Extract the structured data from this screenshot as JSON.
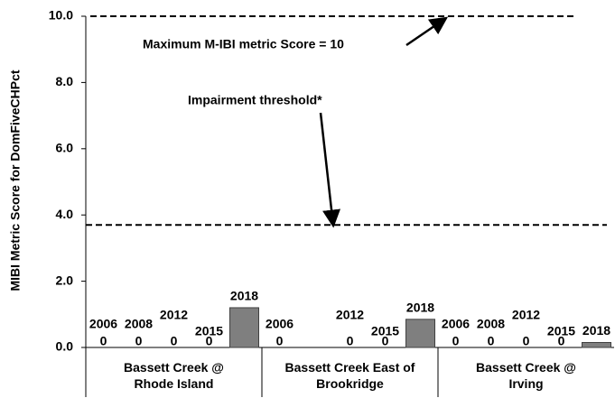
{
  "chart_data": {
    "type": "bar",
    "y_label": "MIBI Metric Score for DomFiveCHPct",
    "categories": [
      "Bassett Creek @\nRhode Island",
      "Bassett Creek East of\nBrookridge",
      "Bassett Creek @\nIrving"
    ],
    "series": [
      {
        "name": "2006",
        "color": "#7f7f7f",
        "values": [
          0,
          0,
          0
        ],
        "value_labels": [
          "0",
          "0",
          "0"
        ]
      },
      {
        "name": "2008",
        "color": "#7f7f7f",
        "values": [
          0,
          null,
          0
        ],
        "value_labels": [
          "0",
          null,
          "0"
        ]
      },
      {
        "name": "2012",
        "color": "#7f7f7f",
        "values": [
          0,
          0,
          0
        ],
        "value_labels": [
          "0",
          "0",
          "0"
        ]
      },
      {
        "name": "2015",
        "color": "#7f7f7f",
        "values": [
          0,
          0,
          0
        ],
        "value_labels": [
          "0",
          "0",
          "0"
        ]
      },
      {
        "name": "2018",
        "color": "#7f7f7f",
        "values": [
          1.2,
          0.85,
          0.15
        ],
        "value_labels": [
          null,
          null,
          null
        ]
      }
    ],
    "ylim": [
      0,
      10
    ],
    "yticks": [
      {
        "value": 0,
        "label": "0.0"
      },
      {
        "value": 2,
        "label": "2.0"
      },
      {
        "value": 4,
        "label": "4.0"
      },
      {
        "value": 6,
        "label": "6.0"
      },
      {
        "value": 8,
        "label": "8.0"
      },
      {
        "value": 10,
        "label": "10.0"
      }
    ],
    "reference_lines": [
      {
        "value": 10,
        "label": "Maximum M-IBI metric Score = 10"
      },
      {
        "value": 3.7,
        "label": "Impairment threshold*"
      }
    ]
  }
}
